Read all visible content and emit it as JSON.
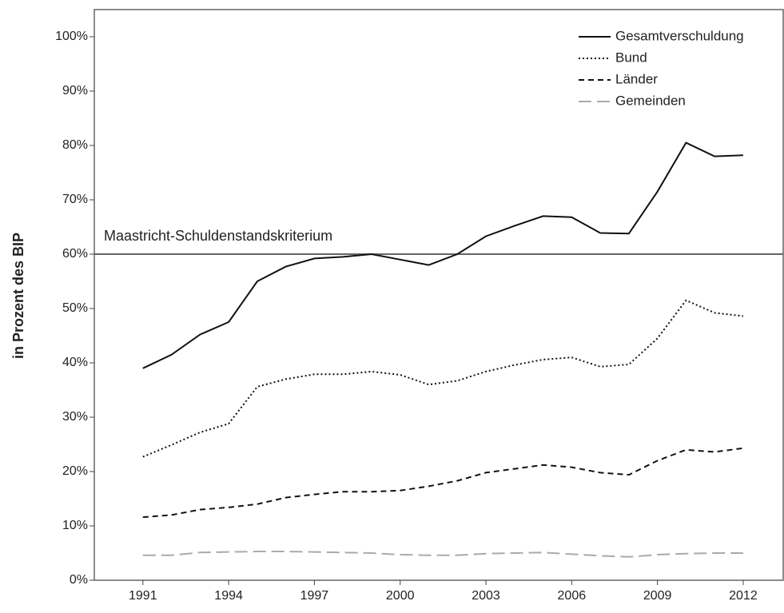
{
  "chart_data": {
    "type": "line",
    "ylabel": "in Prozent des BIP",
    "x": [
      1991,
      1992,
      1993,
      1994,
      1995,
      1996,
      1997,
      1998,
      1999,
      2000,
      2001,
      2002,
      2003,
      2004,
      2005,
      2006,
      2007,
      2008,
      2009,
      2010,
      2011,
      2012
    ],
    "xlim": [
      1989.3,
      2013.4
    ],
    "xticks": [
      1991,
      1994,
      1997,
      2000,
      2003,
      2006,
      2009,
      2012
    ],
    "ylim": [
      0,
      105
    ],
    "yticks": [
      {
        "value": 0,
        "label": "0%"
      },
      {
        "value": 10,
        "label": "10%"
      },
      {
        "value": 20,
        "label": "20%"
      },
      {
        "value": 30,
        "label": "30%"
      },
      {
        "value": 40,
        "label": "40%"
      },
      {
        "value": 50,
        "label": "50%"
      },
      {
        "value": 60,
        "label": "60%"
      },
      {
        "value": 70,
        "label": "70%"
      },
      {
        "value": 80,
        "label": "80%"
      },
      {
        "value": 90,
        "label": "90%"
      },
      {
        "value": 100,
        "label": "100%"
      }
    ],
    "reference_line": {
      "value": 60,
      "label": "Maastricht-Schuldenstandskriterium"
    },
    "legend": "upper right",
    "series": [
      {
        "name": "Gesamtverschuldung",
        "color": "#111111",
        "line_style": "solid",
        "values": [
          39.0,
          41.5,
          45.2,
          47.5,
          55.0,
          57.7,
          59.2,
          59.5,
          60.0,
          59.0,
          58.0,
          60.0,
          63.3,
          65.2,
          67.0,
          66.8,
          63.9,
          63.8,
          71.5,
          80.5,
          78.0,
          78.2
        ]
      },
      {
        "name": "Bund",
        "color": "#111111",
        "line_style": "dotted",
        "values": [
          22.7,
          24.9,
          27.2,
          28.8,
          35.6,
          37.0,
          37.9,
          37.9,
          38.4,
          37.8,
          36.0,
          36.7,
          38.4,
          39.6,
          40.6,
          41.0,
          39.3,
          39.7,
          44.5,
          51.5,
          49.2,
          48.6
        ]
      },
      {
        "name": "Länder",
        "color": "#111111",
        "line_style": "dashed",
        "values": [
          11.6,
          12.0,
          13.0,
          13.4,
          14.0,
          15.2,
          15.8,
          16.3,
          16.3,
          16.5,
          17.3,
          18.3,
          19.8,
          20.5,
          21.2,
          20.8,
          19.8,
          19.4,
          22.0,
          24.0,
          23.6,
          24.3
        ]
      },
      {
        "name": "Gemeinden",
        "color": "#aaaaaa",
        "line_style": "longdash",
        "values": [
          4.6,
          4.6,
          5.1,
          5.2,
          5.3,
          5.3,
          5.2,
          5.1,
          5.0,
          4.7,
          4.6,
          4.6,
          4.9,
          5.0,
          5.1,
          4.8,
          4.5,
          4.3,
          4.7,
          4.9,
          5.0,
          5.0
        ]
      }
    ]
  }
}
